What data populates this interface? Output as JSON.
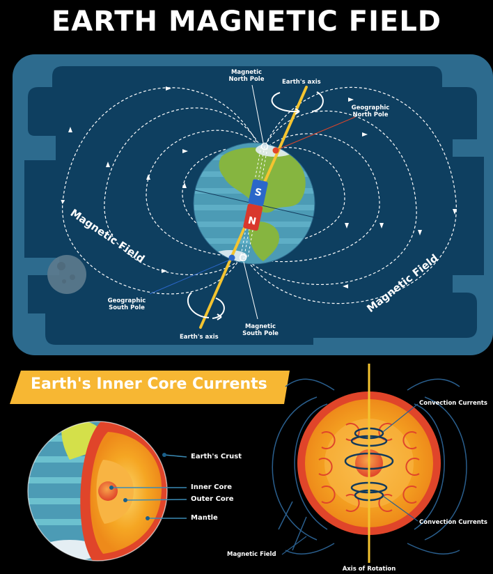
{
  "title": "EARTH MAGNETIC FIELD",
  "top_diagram": {
    "magnetic_north_pole": [
      "Magnetic",
      "North Pole"
    ],
    "earths_axis_top": "Earth's axis",
    "geographic_north_pole": [
      "Geographic",
      "North Pole"
    ],
    "magnetic_field_left": "Magnetic Field",
    "magnetic_field_right": "Magnetic Field",
    "geographic_south_pole": [
      "Geographic",
      "South Pole"
    ],
    "earths_axis_bottom": "Earth's axis",
    "magnetic_south_pole": [
      "Magnetic",
      "South Pole"
    ],
    "magnet_s": "S",
    "magnet_n": "N"
  },
  "core_section": {
    "banner": "Earth's Inner Core Currents",
    "earths_crust": "Earth's Crust",
    "inner_core": "Inner Core",
    "outer_core": "Outer Core",
    "mantle": "Mantle",
    "convection_currents_top": "Convection Currents",
    "convection_currents_bottom": "Convection Currents",
    "magnetic_field": "Magnetic Field",
    "axis_of_rotation": "Axis of Rotation"
  },
  "colors": {
    "background": "#000000",
    "panel_outer": "#2d6b8e",
    "panel_inner": "#0e3f60",
    "ocean": "#4c9bb5",
    "land": "#86b540",
    "axis": "#f4c430",
    "core_orange": "#f59a1c",
    "crust_red": "#e0452a",
    "banner": "#f7b733",
    "magnet_blue": "#2b67c9",
    "magnet_red": "#d9382c"
  }
}
